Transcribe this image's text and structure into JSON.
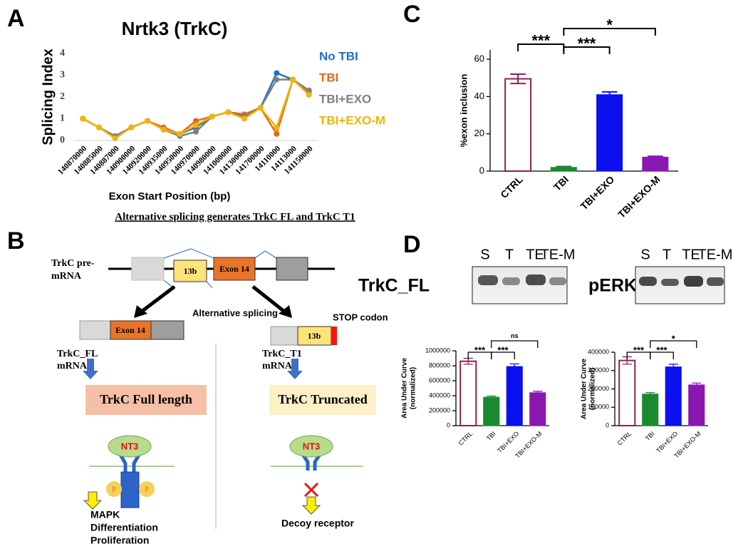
{
  "panel_labels": [
    "A",
    "B",
    "C",
    "D"
  ],
  "chart_data": [
    {
      "type": "line",
      "title": "Nrtk3 (TrkC)",
      "ylabel": "Splicing Index",
      "xlabel": "Exon Start Position (bp)",
      "categories": [
        "140870000",
        "140885000",
        "140887000",
        "140900000",
        "140920000",
        "140935000",
        "140950000",
        "140970000",
        "140980000",
        "141000000",
        "141300000",
        "141700000",
        "14110000",
        "14113000",
        "141150000"
      ],
      "ylim": [
        0,
        4
      ],
      "yticks": [
        0,
        1,
        2,
        3,
        4
      ],
      "series": [
        {
          "name": "No TBI",
          "color": "#1f6fc5",
          "values": [
            1,
            0.6,
            0.2,
            0.6,
            0.9,
            0.5,
            0.3,
            0.6,
            1.1,
            1.3,
            1.2,
            1.5,
            3.1,
            2.8,
            2.3
          ]
        },
        {
          "name": "TBI",
          "color": "#e06a1b",
          "values": [
            1,
            0.6,
            0.1,
            0.6,
            0.9,
            0.6,
            0.3,
            0.9,
            1.1,
            1.3,
            1.2,
            1.5,
            0.3,
            2.8,
            2.2
          ]
        },
        {
          "name": "TBI+EXO",
          "color": "#7f7f7f",
          "values": [
            1,
            0.6,
            0.2,
            0.6,
            0.9,
            0.5,
            0.2,
            0.4,
            1.1,
            1.3,
            1.1,
            1.5,
            2.8,
            2.8,
            2.3
          ]
        },
        {
          "name": "TBI+EXO-M",
          "color": "#f2b400",
          "values": [
            1,
            0.6,
            0.1,
            0.6,
            0.9,
            0.5,
            0.3,
            0.7,
            1.1,
            1.3,
            1.0,
            1.5,
            0.6,
            2.8,
            2.1
          ]
        }
      ]
    },
    {
      "type": "bar",
      "ylabel": [
        "%exon inclusion"
      ],
      "categories": [
        "CTRL",
        "TBI",
        "TBI+EXO",
        "TBI+EXO-M"
      ],
      "values": [
        49.5,
        2,
        41,
        7.5
      ],
      "errors": [
        2.5,
        0.5,
        1.5,
        0.5
      ],
      "colors": [
        "#8b2252",
        "#1a8a2e",
        "#0a10f0",
        "#8a18b0"
      ],
      "fill_styles": [
        "outline",
        "solid",
        "solid",
        "solid"
      ],
      "ylim": [
        0,
        65
      ],
      "yticks": [
        0,
        20,
        40,
        60
      ],
      "annotations": [
        "***",
        "***",
        "*"
      ]
    },
    {
      "type": "bar",
      "ylabel": [
        "Area Under Curve",
        "(normalized)"
      ],
      "categories": [
        "CTRL",
        "TBI",
        "TBI+EXO",
        "TBI+EXO-M"
      ],
      "values": [
        860000,
        380000,
        790000,
        440000
      ],
      "errors": [
        40000,
        15000,
        35000,
        20000
      ],
      "colors": [
        "#8b2252",
        "#1a8a2e",
        "#0a10f0",
        "#8a18b0"
      ],
      "fill_styles": [
        "outline",
        "solid",
        "solid",
        "solid"
      ],
      "ylim": [
        0,
        1000000
      ],
      "yticks": [
        0,
        200000,
        400000,
        600000,
        800000,
        1000000
      ],
      "annotations": [
        "***",
        "***",
        "ns"
      ]
    },
    {
      "type": "bar",
      "ylabel": [
        "Area Under Curve",
        "(normalized)"
      ],
      "categories": [
        "CTRL",
        "TBI",
        "TBI+EXO",
        "TBI+EXO-M"
      ],
      "values": [
        355000,
        172000,
        320000,
        222000
      ],
      "errors": [
        20000,
        8000,
        15000,
        10000
      ],
      "colors": [
        "#8b2252",
        "#1a8a2e",
        "#0a10f0",
        "#8a18b0"
      ],
      "fill_styles": [
        "outline",
        "solid",
        "solid",
        "solid"
      ],
      "ylim": [
        0,
        400000
      ],
      "yticks": [
        0,
        100000,
        200000,
        300000,
        400000
      ],
      "annotations": [
        "***",
        "***",
        "*"
      ]
    }
  ],
  "gel": {
    "lanes_left": [
      "S",
      "T",
      "TE",
      "TE-M"
    ],
    "label_left": "TrkC_FL",
    "lanes_right": [
      "S",
      "T",
      "TE",
      "TE-M"
    ],
    "label_right": "pERK"
  },
  "diagram": {
    "title": "Alternative splicing generates TrkC FL and TrkC T1",
    "pre_mrna_label": [
      "TrkC pre-",
      "mRNA"
    ],
    "exon_13b": "13b",
    "exon_14": "Exon 14",
    "splicing_label": "Alternative splicing",
    "stop_label": "STOP codon",
    "fl_mrna": {
      "exon": "Exon 14",
      "label": [
        "TrkC_FL",
        "mRNA"
      ]
    },
    "t1_mrna": {
      "exon": "13b",
      "label": [
        "TrkC_T1",
        "mRNA"
      ]
    },
    "fl_protein": "TrkC Full length",
    "t1_protein": "TrkC Truncated",
    "ligand": [
      "NT3",
      "NT3"
    ],
    "phospho": [
      "P",
      "P"
    ],
    "fl_outcome": [
      "MAPK",
      "Differentiation",
      "Proliferation"
    ],
    "t1_outcome": "Decoy receptor"
  }
}
